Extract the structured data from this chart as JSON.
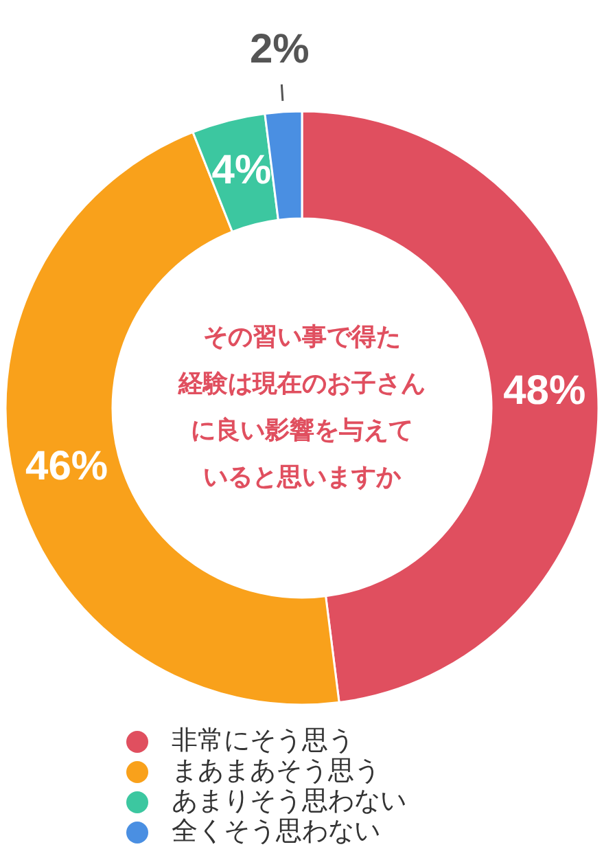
{
  "chart_data": {
    "type": "donut",
    "annotations": [
      "その習い事で得た",
      "経験は現在のお子さん",
      "に良い影響を与えて",
      "いると思いますか"
    ],
    "categories": [
      "非常にそう思う",
      "まあまあそう思う",
      "あまりそう思わない",
      "全くそう思わない"
    ],
    "values": [
      48,
      46,
      4,
      2
    ],
    "colors": [
      "#e04f5f",
      "#f9a11b",
      "#3cc7a0",
      "#4a8fe2"
    ],
    "value_labels": [
      "48%",
      "46%",
      "4%",
      "2%"
    ],
    "legend": "bottom"
  }
}
